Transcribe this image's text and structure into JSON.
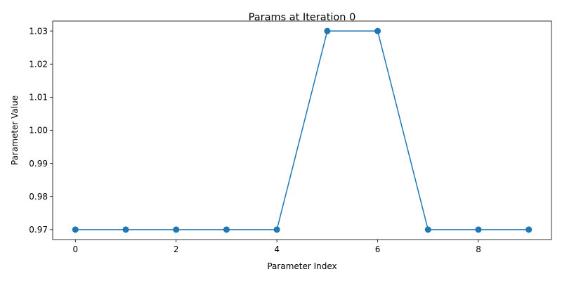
{
  "chart_data": {
    "type": "line",
    "title": "Params at Iteration 0",
    "xlabel": "Parameter Index",
    "ylabel": "Parameter Value",
    "xlim": [
      -0.45,
      9.45
    ],
    "ylim": [
      0.967,
      1.033
    ],
    "x_ticks": [
      0,
      2,
      4,
      6,
      8
    ],
    "x_tick_labels": [
      "0",
      "2",
      "4",
      "6",
      "8"
    ],
    "y_ticks": [
      0.97,
      0.98,
      0.99,
      1.0,
      1.01,
      1.02,
      1.03
    ],
    "y_tick_labels": [
      "0.97",
      "0.98",
      "0.99",
      "1.00",
      "1.01",
      "1.02",
      "1.03"
    ],
    "grid": false,
    "series": [
      {
        "name": "params",
        "color": "#1f77b4",
        "marker": "circle",
        "x": [
          0,
          1,
          2,
          3,
          4,
          5,
          6,
          7,
          8,
          9
        ],
        "values": [
          0.97,
          0.97,
          0.97,
          0.97,
          0.97,
          1.03,
          1.03,
          0.97,
          0.97,
          0.97
        ]
      }
    ]
  }
}
